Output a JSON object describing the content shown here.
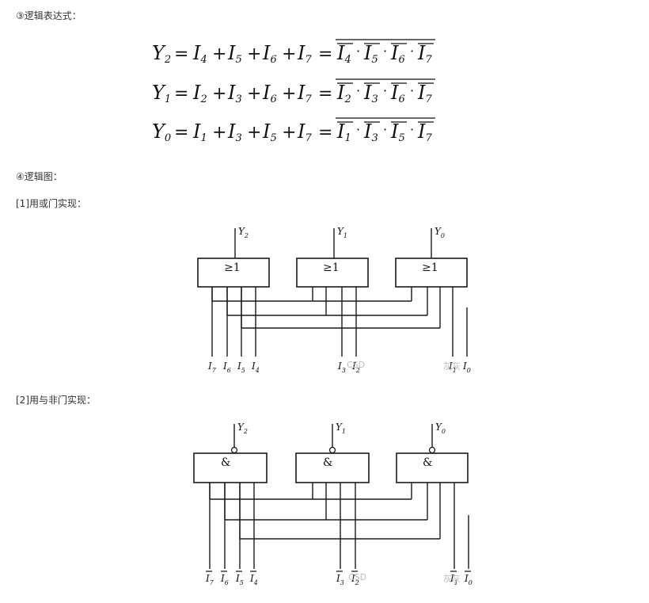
{
  "headings": {
    "expr": "③逻辑表达式：",
    "diagram": "④逻辑图：",
    "or_impl": "[1]用或门实现：",
    "nand_impl": "[2]用与非门实现："
  },
  "equations": [
    {
      "lhs": "Y",
      "lhs_sub": "2",
      "terms": [
        "4",
        "5",
        "6",
        "7"
      ]
    },
    {
      "lhs": "Y",
      "lhs_sub": "1",
      "terms": [
        "2",
        "3",
        "6",
        "7"
      ]
    },
    {
      "lhs": "Y",
      "lhs_sub": "0",
      "terms": [
        "1",
        "3",
        "5",
        "7"
      ]
    }
  ],
  "or_diagram": {
    "gate_label": "≥1",
    "outputs": [
      "Y2",
      "Y1",
      "Y0"
    ],
    "inputs": [
      "I7",
      "I6",
      "I5",
      "I4",
      "I3",
      "I2",
      "I1",
      "I0"
    ]
  },
  "nand_diagram": {
    "gate_label": "&",
    "outputs": [
      "Y2",
      "Y1",
      "Y0"
    ],
    "inputs": [
      "I7",
      "I6",
      "I5",
      "I4",
      "I3",
      "I2",
      "I1",
      "I0"
    ]
  },
  "watermarks": [
    "CSD",
    "灰灰"
  ]
}
